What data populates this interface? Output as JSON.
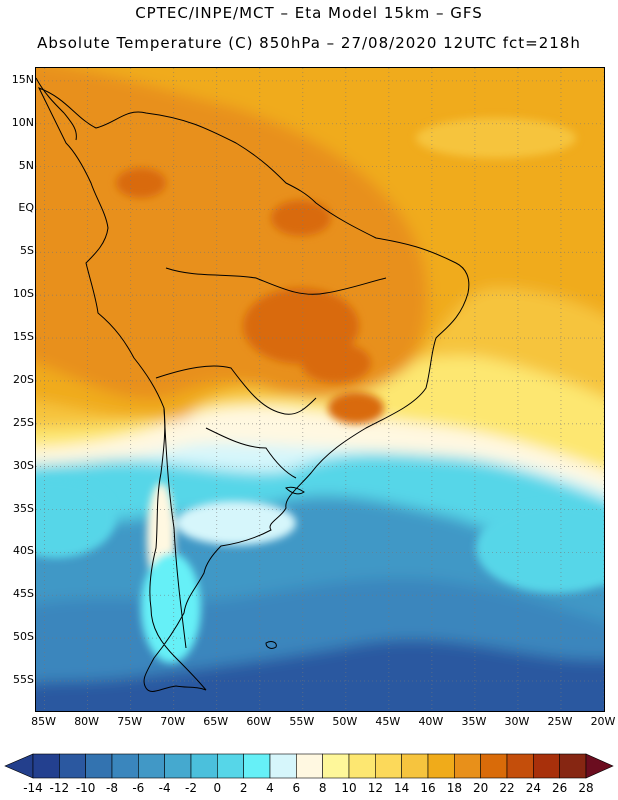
{
  "title_line1": "CPTEC/INPE/MCT –  Eta Model 15km – GFS",
  "title_line2": "Absolute Temperature (C) 850hPa – 27/08/2020 12UTC fct=218h",
  "lat_labels": [
    "15N",
    "10N",
    "5N",
    "EQ",
    "5S",
    "10S",
    "15S",
    "20S",
    "25S",
    "30S",
    "35S",
    "40S",
    "45S",
    "50S",
    "55S"
  ],
  "lon_labels": [
    "85W",
    "80W",
    "75W",
    "70W",
    "65W",
    "60W",
    "55W",
    "50W",
    "45W",
    "40W",
    "35W",
    "30W",
    "25W",
    "20W"
  ],
  "map": {
    "lon_range": [
      -86,
      -20
    ],
    "lat_range": [
      -58.5,
      16.5
    ],
    "grid_interval_deg": 5,
    "grid_style": "dotted"
  },
  "colorbar": {
    "labels": [
      "-14",
      "-12",
      "-10",
      "-8",
      "-6",
      "-4",
      "-2",
      "0",
      "2",
      "4",
      "6",
      "8",
      "10",
      "12",
      "14",
      "16",
      "18",
      "20",
      "22",
      "24",
      "26",
      "28"
    ],
    "colors": [
      "#23408f",
      "#2b58a0",
      "#3373b0",
      "#3a86bd",
      "#4198c6",
      "#45a9cf",
      "#4bc0dc",
      "#56d6e8",
      "#66f0f7",
      "#d6f6fb",
      "#fff8e1",
      "#fef79a",
      "#fde771",
      "#fcd95a",
      "#f6c43e",
      "#f0ab1a",
      "#e8901a",
      "#d96b09",
      "#c44e0b",
      "#a8300b",
      "#862612"
    ],
    "under_color": "#233f8c",
    "over_color": "#6b0d1f"
  },
  "temperature_regions": [
    {
      "name": "tropics-band",
      "color": "#f0ab1a"
    },
    {
      "name": "amazon-warm",
      "color": "#e8901a"
    },
    {
      "name": "central-brazil-hot",
      "color": "#d96b09"
    },
    {
      "name": "subtropic-yellow",
      "color": "#fcd95a"
    },
    {
      "name": "transition-pale",
      "color": "#fff8e1"
    },
    {
      "name": "cool-cyan",
      "color": "#66f0f7"
    },
    {
      "name": "southern-cold",
      "color": "#3a86bd"
    },
    {
      "name": "polar-cold",
      "color": "#2b58a0"
    }
  ]
}
